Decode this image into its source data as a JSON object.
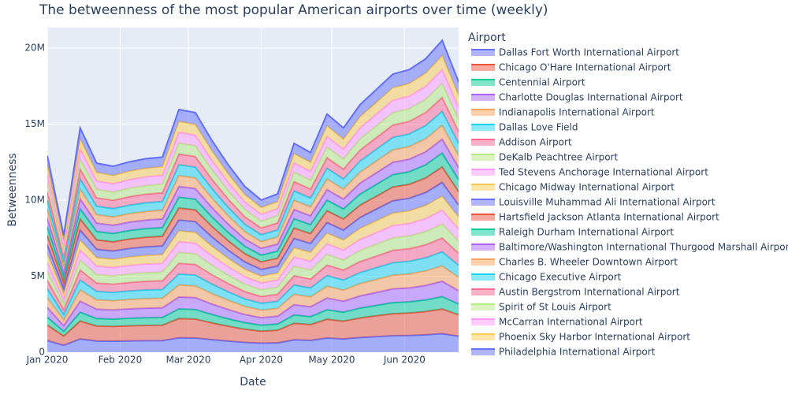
{
  "chart_data": {
    "type": "area",
    "title": "The betweenness of the most popular American airports over time (weekly)",
    "x_label": "Date",
    "y_label": "Betweenness",
    "legend_title": "Airport",
    "stacked": true,
    "grid": true,
    "legend_position": "right",
    "x": [
      "2020-01-01",
      "2020-01-08",
      "2020-01-15",
      "2020-01-22",
      "2020-01-29",
      "2020-02-05",
      "2020-02-12",
      "2020-02-19",
      "2020-02-26",
      "2020-03-04",
      "2020-03-11",
      "2020-03-18",
      "2020-03-25",
      "2020-04-01",
      "2020-04-08",
      "2020-04-15",
      "2020-04-22",
      "2020-04-29",
      "2020-05-06",
      "2020-05-13",
      "2020-05-20",
      "2020-05-27",
      "2020-06-03",
      "2020-06-10",
      "2020-06-17",
      "2020-06-24"
    ],
    "xlim": [
      "2020-01-01",
      "2020-06-24"
    ],
    "xticks": [
      {
        "value": "2020-01-01",
        "label": "Jan 2020"
      },
      {
        "value": "2020-02-01",
        "label": "Feb 2020"
      },
      {
        "value": "2020-03-01",
        "label": "Mar 2020"
      },
      {
        "value": "2020-04-01",
        "label": "Apr 2020"
      },
      {
        "value": "2020-05-01",
        "label": "May 2020"
      },
      {
        "value": "2020-06-01",
        "label": "Jun 2020"
      }
    ],
    "ylim": [
      0,
      21350000
    ],
    "yticks": [
      0,
      {
        "value": 5000000,
        "label": "5M"
      },
      {
        "value": 10000000,
        "label": "10M"
      },
      {
        "value": 15000000,
        "label": "15M"
      },
      {
        "value": 20000000,
        "label": "20M"
      }
    ],
    "series": [
      {
        "name": "Dallas Fort Worth International Airport",
        "color": "#636efa",
        "values": [
          768000,
          456000,
          876000,
          738000,
          726000,
          744000,
          756000,
          762000,
          948000,
          936000,
          828000,
          732000,
          648000,
          594000,
          618000,
          816000,
          780000,
          930000,
          876000,
          966000,
          1026000,
          1086000,
          1104000,
          1146000,
          1218000,
          1056000
        ]
      },
      {
        "name": "Chicago O'Hare International Airport",
        "color": "#EF553B",
        "values": [
          1024000,
          608000,
          1168000,
          984000,
          968000,
          992000,
          1008000,
          1016000,
          1264000,
          1248000,
          1104000,
          976000,
          864000,
          792000,
          824000,
          1088000,
          1040000,
          1240000,
          1168000,
          1288000,
          1368000,
          1448000,
          1472000,
          1528000,
          1624000,
          1408000
        ]
      },
      {
        "name": "Centennial Airport",
        "color": "#00cc96",
        "values": [
          512000,
          304000,
          584000,
          492000,
          484000,
          496000,
          504000,
          508000,
          632000,
          624000,
          552000,
          488000,
          432000,
          396000,
          412000,
          544000,
          520000,
          620000,
          584000,
          644000,
          684000,
          724000,
          736000,
          764000,
          812000,
          704000
        ]
      },
      {
        "name": "Charlotte Douglas International Airport",
        "color": "#ab63fa",
        "values": [
          640000,
          380000,
          730000,
          615000,
          605000,
          620000,
          630000,
          635000,
          790000,
          780000,
          690000,
          610000,
          540000,
          495000,
          515000,
          680000,
          650000,
          775000,
          730000,
          805000,
          855000,
          905000,
          920000,
          955000,
          1015000,
          880000
        ]
      },
      {
        "name": "Indianapolis International Airport",
        "color": "#FFA15A",
        "values": [
          640000,
          380000,
          730000,
          615000,
          605000,
          620000,
          630000,
          635000,
          790000,
          780000,
          690000,
          610000,
          540000,
          495000,
          515000,
          680000,
          650000,
          775000,
          730000,
          805000,
          855000,
          905000,
          920000,
          955000,
          1015000,
          880000
        ]
      },
      {
        "name": "Dallas Love Field",
        "color": "#19d3f3",
        "values": [
          576000,
          342000,
          657000,
          554000,
          545000,
          558000,
          567000,
          572000,
          711000,
          702000,
          621000,
          549000,
          486000,
          446000,
          464000,
          612000,
          585000,
          698000,
          657000,
          725000,
          770000,
          815000,
          828000,
          860000,
          914000,
          792000
        ]
      },
      {
        "name": "Addison Airport",
        "color": "#FF6692",
        "values": [
          576000,
          342000,
          657000,
          554000,
          545000,
          558000,
          567000,
          572000,
          711000,
          702000,
          621000,
          549000,
          486000,
          446000,
          464000,
          612000,
          585000,
          698000,
          657000,
          725000,
          770000,
          815000,
          828000,
          860000,
          914000,
          792000
        ]
      },
      {
        "name": "DeKalb Peachtree Airport",
        "color": "#B6E880",
        "values": [
          576000,
          342000,
          657000,
          554000,
          545000,
          558000,
          567000,
          572000,
          711000,
          702000,
          621000,
          549000,
          486000,
          446000,
          464000,
          612000,
          585000,
          698000,
          657000,
          725000,
          770000,
          815000,
          828000,
          860000,
          914000,
          792000
        ]
      },
      {
        "name": "Ted Stevens Anchorage International Airport",
        "color": "#FF97FF",
        "values": [
          576000,
          342000,
          657000,
          554000,
          545000,
          558000,
          567000,
          572000,
          711000,
          702000,
          621000,
          549000,
          486000,
          446000,
          464000,
          612000,
          585000,
          698000,
          657000,
          725000,
          770000,
          815000,
          828000,
          860000,
          914000,
          792000
        ]
      },
      {
        "name": "Chicago Midway International Airport",
        "color": "#FECB52",
        "values": [
          576000,
          342000,
          657000,
          554000,
          545000,
          558000,
          567000,
          572000,
          711000,
          702000,
          621000,
          549000,
          486000,
          446000,
          464000,
          612000,
          585000,
          698000,
          657000,
          725000,
          770000,
          815000,
          828000,
          860000,
          914000,
          792000
        ]
      },
      {
        "name": "Louisville Muhammad Ali International Airport",
        "color": "#636efa",
        "values": [
          576000,
          342000,
          657000,
          554000,
          545000,
          558000,
          567000,
          572000,
          711000,
          702000,
          621000,
          549000,
          486000,
          446000,
          464000,
          612000,
          585000,
          698000,
          657000,
          725000,
          770000,
          815000,
          828000,
          860000,
          914000,
          792000
        ]
      },
      {
        "name": "Hartsfield Jackson Atlanta International Airport",
        "color": "#EF553B",
        "values": [
          640000,
          380000,
          730000,
          615000,
          605000,
          620000,
          630000,
          635000,
          790000,
          780000,
          690000,
          610000,
          540000,
          495000,
          515000,
          680000,
          650000,
          775000,
          730000,
          805000,
          855000,
          905000,
          920000,
          955000,
          1015000,
          880000
        ]
      },
      {
        "name": "Raleigh Durham International Airport",
        "color": "#00cc96",
        "values": [
          576000,
          342000,
          657000,
          554000,
          545000,
          558000,
          567000,
          572000,
          711000,
          702000,
          621000,
          549000,
          486000,
          446000,
          464000,
          612000,
          585000,
          698000,
          657000,
          725000,
          770000,
          815000,
          828000,
          860000,
          914000,
          792000
        ]
      },
      {
        "name": "Baltimore/Washington International Thurgood Marshall Airport",
        "color": "#ab63fa",
        "values": [
          576000,
          342000,
          657000,
          554000,
          545000,
          558000,
          567000,
          572000,
          711000,
          702000,
          621000,
          549000,
          486000,
          446000,
          464000,
          612000,
          585000,
          698000,
          657000,
          725000,
          770000,
          815000,
          828000,
          860000,
          914000,
          792000
        ]
      },
      {
        "name": "Charles B. Wheeler Downtown Airport",
        "color": "#FFA15A",
        "values": [
          576000,
          342000,
          657000,
          554000,
          545000,
          558000,
          567000,
          572000,
          711000,
          702000,
          621000,
          549000,
          486000,
          446000,
          464000,
          612000,
          585000,
          698000,
          657000,
          725000,
          770000,
          815000,
          828000,
          860000,
          914000,
          792000
        ]
      },
      {
        "name": "Chicago Executive Airport",
        "color": "#19d3f3",
        "values": [
          576000,
          342000,
          657000,
          554000,
          545000,
          558000,
          567000,
          572000,
          711000,
          702000,
          621000,
          549000,
          486000,
          446000,
          464000,
          612000,
          585000,
          698000,
          657000,
          725000,
          770000,
          815000,
          828000,
          860000,
          914000,
          792000
        ]
      },
      {
        "name": "Austin Bergstrom International Airport",
        "color": "#FF6692",
        "values": [
          576000,
          342000,
          657000,
          554000,
          545000,
          558000,
          567000,
          572000,
          711000,
          702000,
          621000,
          549000,
          486000,
          446000,
          464000,
          612000,
          585000,
          698000,
          657000,
          725000,
          770000,
          815000,
          828000,
          860000,
          914000,
          792000
        ]
      },
      {
        "name": "Spirit of St Louis Airport",
        "color": "#B6E880",
        "values": [
          576000,
          342000,
          657000,
          554000,
          545000,
          558000,
          567000,
          572000,
          711000,
          702000,
          621000,
          549000,
          486000,
          446000,
          464000,
          612000,
          585000,
          698000,
          657000,
          725000,
          770000,
          815000,
          828000,
          860000,
          914000,
          792000
        ]
      },
      {
        "name": "McCarran International Airport",
        "color": "#FF97FF",
        "values": [
          576000,
          342000,
          657000,
          554000,
          545000,
          558000,
          567000,
          572000,
          711000,
          702000,
          621000,
          549000,
          486000,
          446000,
          464000,
          612000,
          585000,
          698000,
          657000,
          725000,
          770000,
          815000,
          828000,
          860000,
          914000,
          792000
        ]
      },
      {
        "name": "Phoenix Sky Harbor International Airport",
        "color": "#FECB52",
        "values": [
          576000,
          342000,
          657000,
          554000,
          545000,
          558000,
          567000,
          572000,
          711000,
          702000,
          621000,
          549000,
          486000,
          446000,
          464000,
          612000,
          585000,
          698000,
          657000,
          725000,
          770000,
          815000,
          828000,
          860000,
          914000,
          792000
        ]
      },
      {
        "name": "Philadelphia International Airport",
        "color": "#636efa",
        "values": [
          640000,
          380000,
          730000,
          615000,
          605000,
          620000,
          630000,
          635000,
          790000,
          780000,
          690000,
          610000,
          540000,
          495000,
          515000,
          680000,
          650000,
          775000,
          730000,
          805000,
          855000,
          905000,
          920000,
          955000,
          1015000,
          880000
        ]
      }
    ]
  }
}
